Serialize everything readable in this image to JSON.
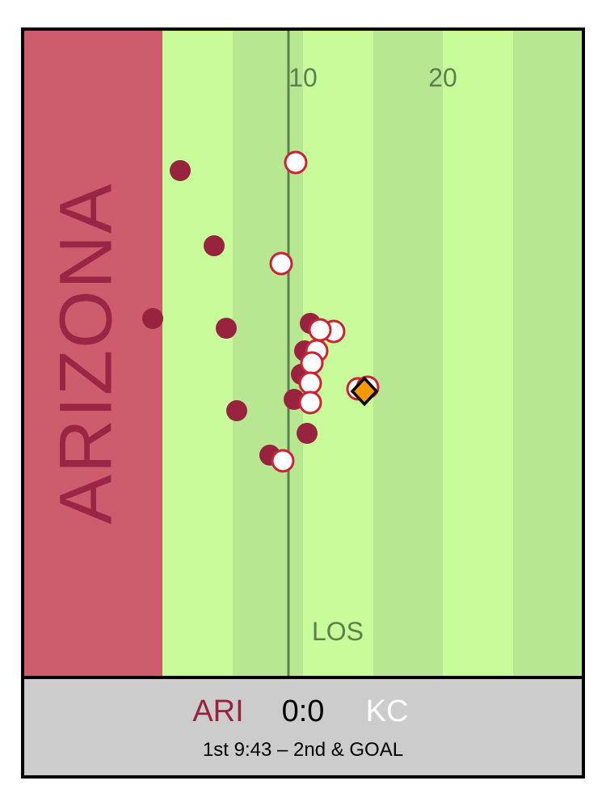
{
  "field": {
    "endzone_label": "ARIZONA",
    "yard_numbers": [
      "10",
      "20"
    ],
    "los_label": "LOS",
    "colors": {
      "endzone": "#cd5c6c",
      "stripe_light": "#c8fc9a",
      "stripe_dark": "#b7e891",
      "los_line": "#5d7f4e",
      "text": "#5d7f4e"
    }
  },
  "scoreboard": {
    "home_team": "ARI",
    "score": "0:0",
    "away_team": "KC",
    "status": "1st 9:43 – 2nd & GOAL",
    "colors": {
      "home": "#97233f",
      "away": "#ffffff",
      "background": "#cccccc"
    }
  },
  "players": {
    "home_color": "#97233f",
    "away_fill": "#ffffff",
    "away_outline": "#cc2233",
    "ball_color": "#f29a00"
  }
}
